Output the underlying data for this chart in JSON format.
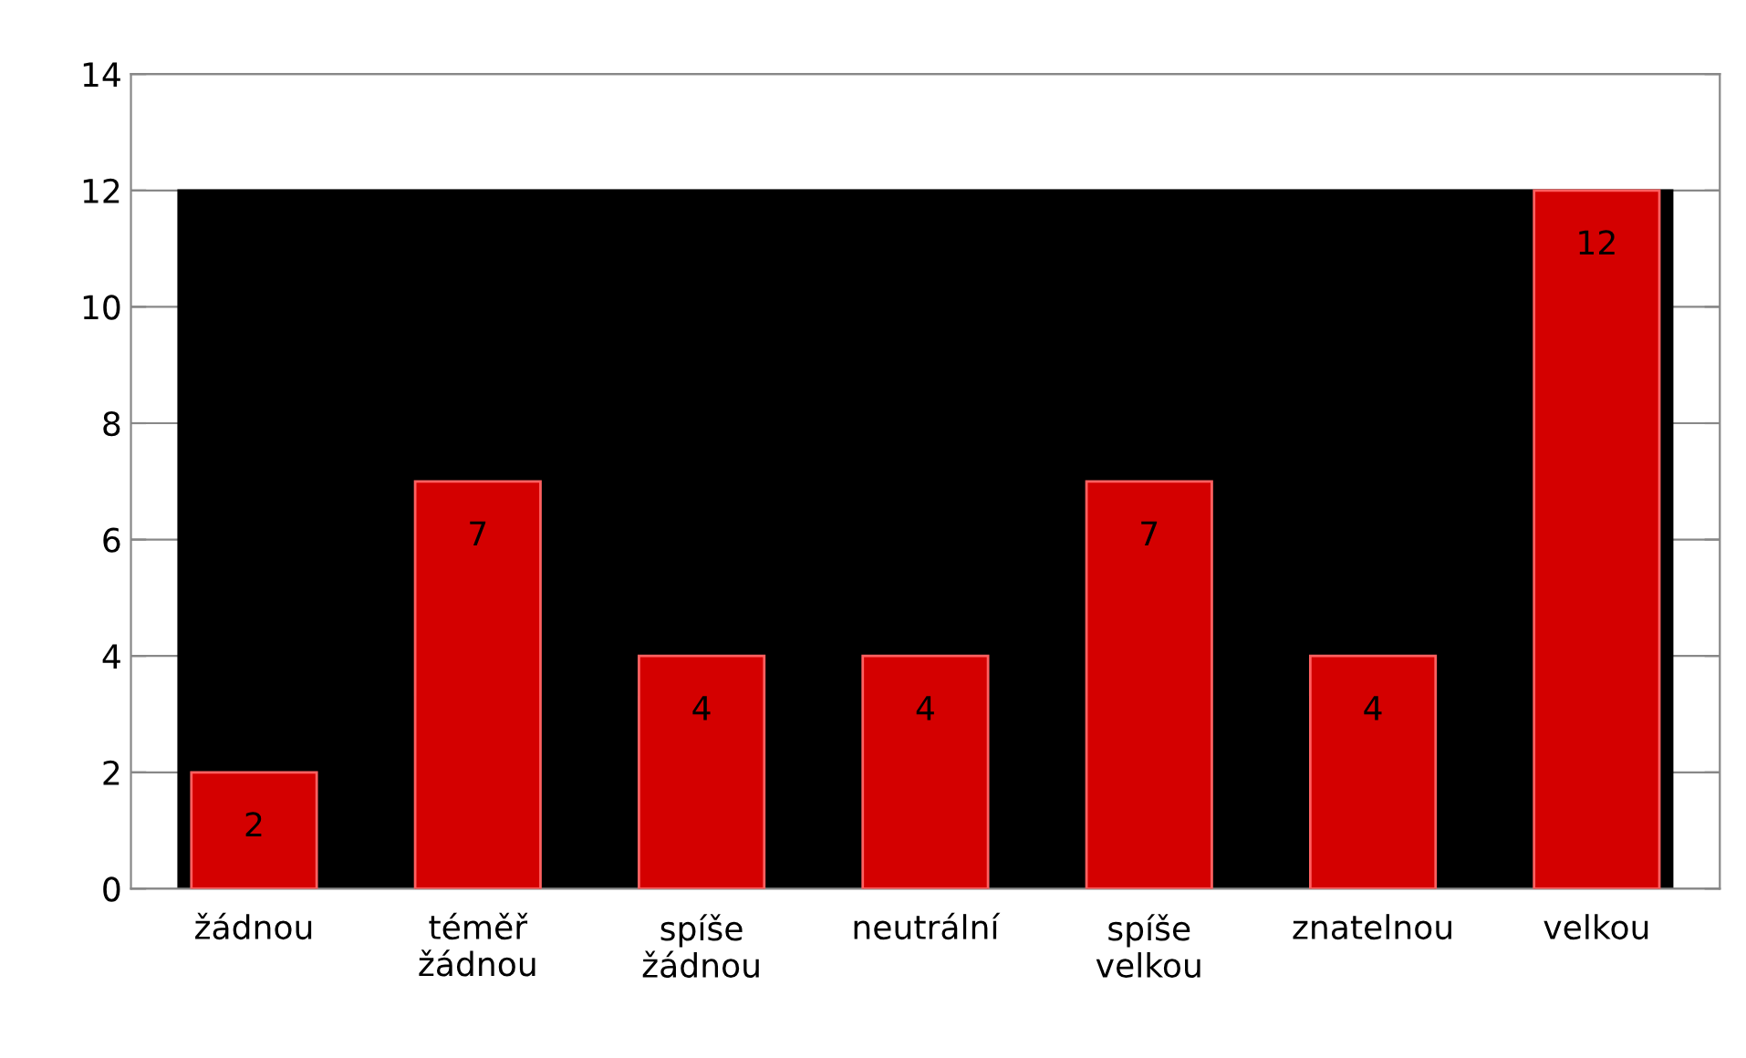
{
  "chart_data": {
    "type": "bar",
    "categories": [
      "žádnou",
      "téměř\nžádnou",
      "spíše\nžádnou",
      "neutrální",
      "spíše\nvelkou",
      "znatelnou",
      "velkou"
    ],
    "values": [
      2,
      7,
      4,
      4,
      7,
      4,
      12
    ],
    "color": "#d40000",
    "ylim": [
      0,
      14
    ],
    "yticks": [
      0,
      2,
      4,
      6,
      8,
      10,
      12,
      14
    ],
    "grid": "y",
    "data_labels": true,
    "bands": [
      {
        "axis": "y",
        "from": 0,
        "to": 12,
        "color": "#000000"
      }
    ]
  }
}
